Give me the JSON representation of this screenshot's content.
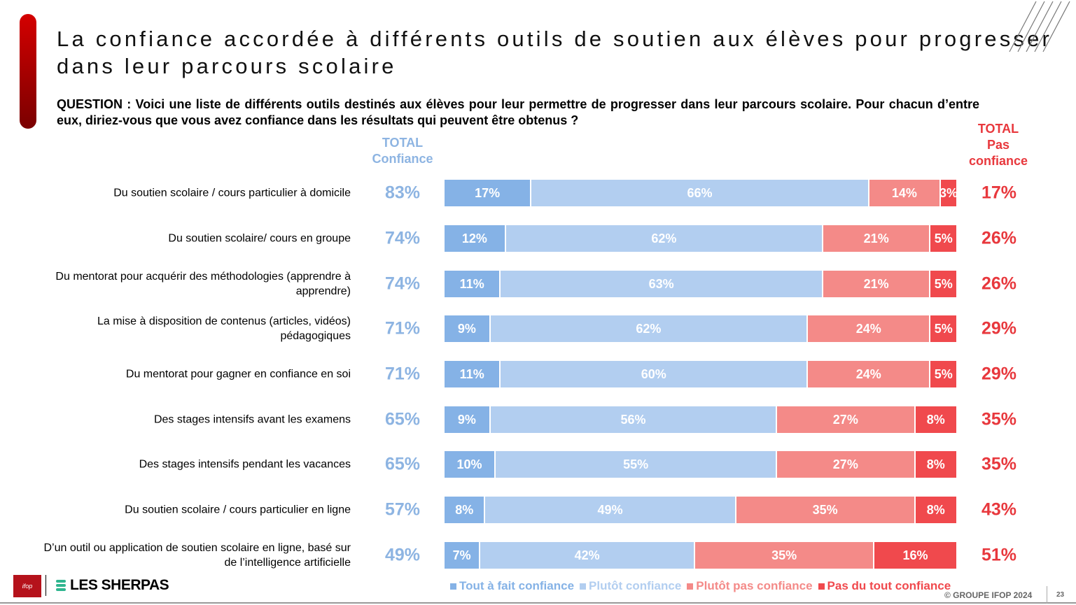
{
  "title": "La confiance accordée à différents outils de soutien aux élèves pour progresser dans leur parcours scolaire",
  "question": "QUESTION : Voici une liste de différents outils destinés aux élèves pour leur permettre de progresser dans leur parcours scolaire. Pour chacun d’entre eux, diriez-vous que vous avez confiance dans les résultats qui peuvent être obtenus ?",
  "headers": {
    "total_confiance_1": "TOTAL",
    "total_confiance_2": "Confiance",
    "total_pas_1": "TOTAL",
    "total_pas_2": "Pas",
    "total_pas_3": "confiance"
  },
  "colors": {
    "tout_a_fait": "#85b2e6",
    "plutot": "#b2cef0",
    "plutot_pas": "#f48a88",
    "pas_du_tout": "#f0494d",
    "total_conf": "#8db4e2",
    "total_pas": "#e8383d"
  },
  "chart_data": {
    "type": "bar",
    "stacked": true,
    "orientation": "horizontal",
    "legend_position": "bottom",
    "series_names": [
      "Tout à fait confiance",
      "Plutôt confiance",
      "Plutôt pas confiance",
      "Pas du tout confiance"
    ],
    "categories": [
      "Du soutien scolaire / cours particulier à domicile",
      "Du soutien scolaire/ cours en groupe",
      "Du mentorat pour acquérir des méthodologies (apprendre à apprendre)",
      "La mise à disposition de contenus (articles, vidéos) pédagogiques",
      "Du mentorat pour gagner en confiance en soi",
      "Des stages intensifs avant les examens",
      "Des stages intensifs pendant les vacances",
      "Du soutien scolaire / cours particulier en ligne",
      "D’un outil ou application de soutien scolaire en ligne, basé sur de l’intelligence artificielle"
    ],
    "values": [
      [
        17,
        66,
        14,
        3
      ],
      [
        12,
        62,
        21,
        5
      ],
      [
        11,
        63,
        21,
        5
      ],
      [
        9,
        62,
        24,
        5
      ],
      [
        11,
        60,
        24,
        5
      ],
      [
        9,
        56,
        27,
        8
      ],
      [
        10,
        55,
        27,
        8
      ],
      [
        8,
        49,
        35,
        8
      ],
      [
        7,
        42,
        35,
        16
      ]
    ],
    "total_confiance": [
      "83%",
      "74%",
      "74%",
      "71%",
      "71%",
      "65%",
      "65%",
      "57%",
      "49%"
    ],
    "total_pas_confiance": [
      "17%",
      "26%",
      "26%",
      "29%",
      "29%",
      "35%",
      "35%",
      "43%",
      "51%"
    ]
  },
  "footer": {
    "copyright": "© GROUPE IFOP 2024",
    "page": "23",
    "ifop_logo": "ifop",
    "sherpas": "LES SHERPAS"
  }
}
